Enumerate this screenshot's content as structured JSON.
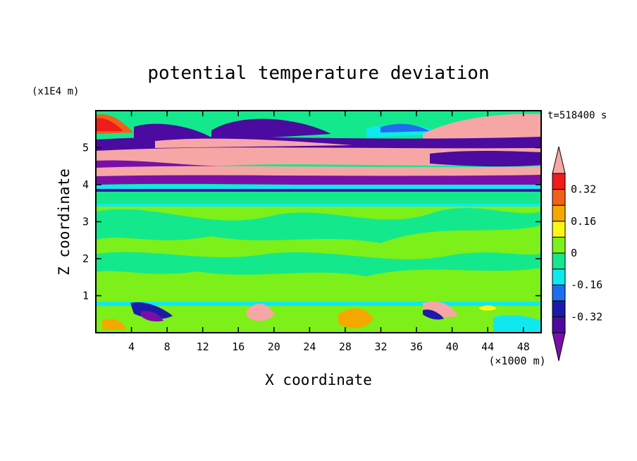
{
  "chart_data": {
    "type": "heatmap",
    "title": "potential temperature deviation",
    "xlabel": "X coordinate",
    "ylabel": "Z coordinate",
    "x_unit": "(×1000 m)",
    "y_unit": "(x1E4 m)",
    "time_label": "t=518400 s",
    "xlim": [
      0,
      50
    ],
    "ylim": [
      0,
      6
    ],
    "x_ticks": [
      4,
      8,
      12,
      16,
      20,
      24,
      28,
      32,
      36,
      40,
      44,
      48
    ],
    "y_ticks": [
      1,
      2,
      3,
      4,
      5
    ],
    "colorbar": {
      "levels": [
        -0.4,
        -0.32,
        -0.24,
        -0.16,
        -0.08,
        0,
        0.08,
        0.16,
        0.24,
        0.32,
        0.4
      ],
      "labels": [
        {
          "value": 0.32,
          "text": "0.32"
        },
        {
          "value": 0.16,
          "text": "0.16"
        },
        {
          "value": 0,
          "text": "0"
        },
        {
          "value": -0.16,
          "text": "-0.16"
        },
        {
          "value": -0.32,
          "text": "-0.32"
        }
      ],
      "colors": [
        "#7a0fa8",
        "#4b0aa0",
        "#1d1aaa",
        "#1e6ef0",
        "#10e8f0",
        "#14e88c",
        "#7cf018",
        "#fbf817",
        "#f5a800",
        "#f26018",
        "#ef1c1c",
        "#f7a6a6"
      ]
    },
    "approx_bands": [
      {
        "z": [
          0.0,
          0.3
        ],
        "value": -0.05
      },
      {
        "z": [
          0.3,
          0.88
        ],
        "value": 0.03
      },
      {
        "z": [
          0.88,
          3.4
        ],
        "value": 0.04
      },
      {
        "z": [
          3.4,
          3.6
        ],
        "value": -0.08
      },
      {
        "z": [
          3.6,
          3.85
        ],
        "value": 0.04
      },
      {
        "z": [
          3.85,
          4.2
        ],
        "value": -0.35
      },
      {
        "z": [
          4.2,
          4.8
        ],
        "value": 0.45
      },
      {
        "z": [
          4.8,
          5.4
        ],
        "value": -0.38
      },
      {
        "z": [
          5.4,
          6.0
        ],
        "value": 0.0
      }
    ]
  }
}
